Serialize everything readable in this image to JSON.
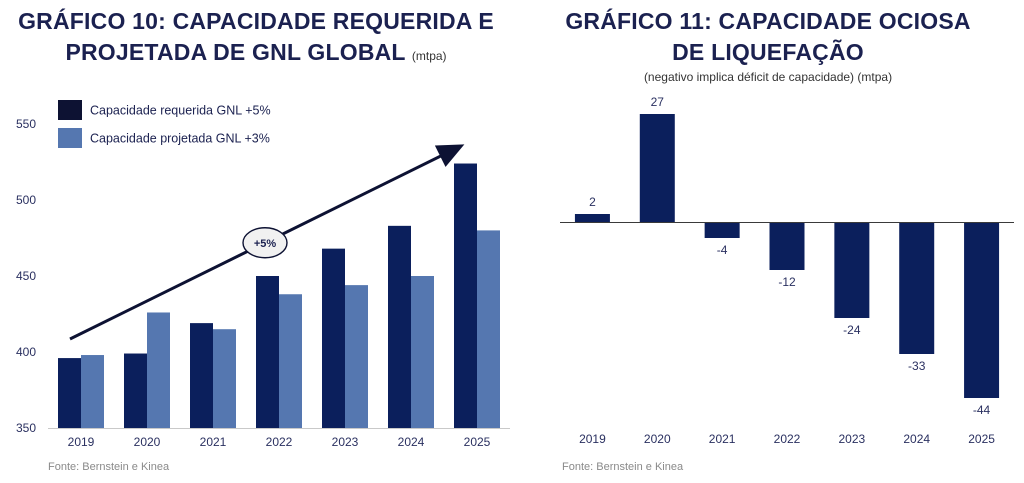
{
  "colors": {
    "dark_navy": "#0b1f5c",
    "steel_blue": "#5577b0",
    "legend_dark": "#0d1233",
    "text": "#1b2150"
  },
  "left": {
    "title_line1": "GRÁFICO 10: CAPACIDADE REQUERIDA E",
    "title_line2": "PROJETADA DE GNL GLOBAL",
    "title_unit": "(mtpa)",
    "source": "Fonte: Bernstein e Kinea"
  },
  "right": {
    "title_line1": "GRÁFICO 11: CAPACIDADE OCIOSA",
    "title_line2": "DE LIQUEFAÇÃO",
    "subtitle": "(negativo implica déficit de capacidade) (mtpa)",
    "source": "Fonte: Bernstein e Kinea"
  },
  "chart_data": [
    {
      "type": "bar",
      "title": "GRÁFICO 10: CAPACIDADE REQUERIDA E PROJETADA DE GNL GLOBAL (mtpa)",
      "categories": [
        "2019",
        "2020",
        "2021",
        "2022",
        "2023",
        "2024",
        "2025"
      ],
      "series": [
        {
          "name": "Capacidade requerida GNL +5%",
          "values": [
            396,
            399,
            419,
            450,
            468,
            483,
            524
          ]
        },
        {
          "name": "Capacidade projetada GNL +3%",
          "values": [
            398,
            426,
            415,
            438,
            444,
            450,
            480
          ]
        }
      ],
      "ylim": [
        350,
        550
      ],
      "yticks": [
        "350",
        "400",
        "450",
        "500",
        "550"
      ],
      "grid": false,
      "legend": "top-left",
      "annotation": "+5%"
    },
    {
      "type": "bar",
      "title": "GRÁFICO 11: CAPACIDADE OCIOSA DE LIQUEFAÇÃO",
      "subtitle": "(negativo implica déficit de capacidade) (mtpa)",
      "categories": [
        "2019",
        "2020",
        "2021",
        "2022",
        "2023",
        "2024",
        "2025"
      ],
      "values": [
        2,
        27,
        -4,
        -12,
        -24,
        -33,
        -44
      ],
      "labels": [
        "2",
        "27",
        "-4",
        "-12",
        "-24",
        "-33",
        "-44"
      ],
      "grid": false
    }
  ]
}
